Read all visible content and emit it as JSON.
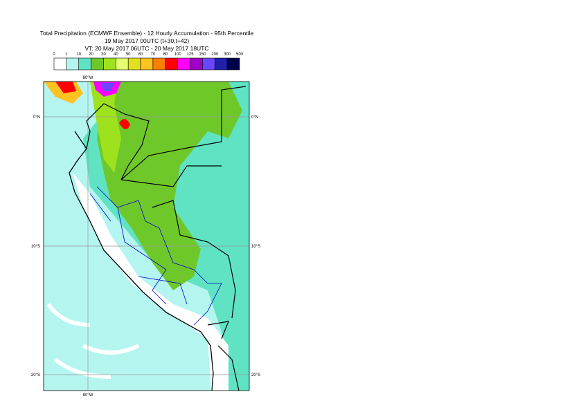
{
  "header": {
    "title": "Total Precipitation (ECMWF Ensemble) - 12 Hourly Accumulation - 95th Percentile",
    "base_time": "19 May 2017 00UTC (t+30,t+42)",
    "valid_time": "VT: 20 May 2017 06UTC - 20 May 2017 18UTC"
  },
  "legend": {
    "bounds": [
      0,
      1,
      10,
      20,
      30,
      40,
      50,
      60,
      70,
      80,
      100,
      125,
      150,
      200,
      300,
      500
    ],
    "colors": [
      "#ffffff",
      "#b4f5f0",
      "#5fe3c3",
      "#6fc82a",
      "#9ee21e",
      "#e4ff70",
      "#e0e020",
      "#ffc21e",
      "#ff8000",
      "#ff0000",
      "#ff00ff",
      "#a000c8",
      "#6a46ff",
      "#2020a8",
      "#00004c"
    ]
  },
  "map": {
    "lon_top": "80°W",
    "lon_bottom": "80°W",
    "lat_left": [
      "0°N",
      "10°S",
      "20°S"
    ],
    "lat_right": [
      "0°N",
      "10°S",
      "20°S"
    ]
  }
}
